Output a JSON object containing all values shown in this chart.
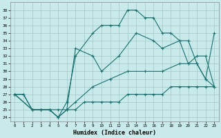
{
  "xlabel": "Humidex (Indice chaleur)",
  "background_color": "#c8eaea",
  "grid_color": "#a8cccc",
  "line_color": "#1a7070",
  "xlim": [
    -0.5,
    23.5
  ],
  "ylim": [
    23.5,
    39.0
  ],
  "xticks": [
    0,
    1,
    2,
    3,
    4,
    5,
    6,
    7,
    8,
    9,
    10,
    11,
    12,
    13,
    14,
    15,
    16,
    17,
    18,
    19,
    20,
    21,
    22,
    23
  ],
  "yticks": [
    24,
    25,
    26,
    27,
    28,
    29,
    30,
    31,
    32,
    33,
    34,
    35,
    36,
    37,
    38
  ],
  "line1_x": [
    0,
    1,
    2,
    3,
    4,
    5,
    6,
    7,
    9,
    10,
    11,
    12,
    13,
    14,
    15,
    16,
    17,
    18,
    19,
    20,
    21,
    22,
    23
  ],
  "line1_y": [
    27,
    27,
    25,
    25,
    25,
    24,
    26,
    32,
    35,
    36,
    36,
    36,
    38,
    38,
    37,
    37,
    35,
    35,
    34,
    31,
    31,
    29,
    28
  ],
  "line2_x": [
    0,
    1,
    2,
    3,
    4,
    5,
    6,
    7,
    9,
    10,
    12,
    14,
    16,
    17,
    19,
    20,
    21,
    22,
    23
  ],
  "line2_y": [
    27,
    27,
    25,
    25,
    25,
    24,
    25,
    33,
    32,
    30,
    32,
    35,
    34,
    33,
    34,
    34,
    31,
    29,
    35
  ],
  "line3_x": [
    0,
    2,
    3,
    4,
    5,
    6,
    7,
    9,
    11,
    13,
    15,
    17,
    19,
    20,
    21,
    22,
    23
  ],
  "line3_y": [
    27,
    25,
    25,
    25,
    24,
    25,
    26,
    28,
    29,
    30,
    30,
    30,
    31,
    31,
    32,
    32,
    28
  ],
  "line4_x": [
    0,
    2,
    3,
    4,
    5,
    6,
    7,
    8,
    9,
    10,
    11,
    12,
    13,
    14,
    15,
    16,
    17,
    18,
    19,
    20,
    21,
    22,
    23
  ],
  "line4_y": [
    27,
    25,
    25,
    25,
    25,
    25,
    25,
    26,
    26,
    26,
    26,
    26,
    27,
    27,
    27,
    27,
    27,
    28,
    28,
    28,
    28,
    28,
    28
  ]
}
